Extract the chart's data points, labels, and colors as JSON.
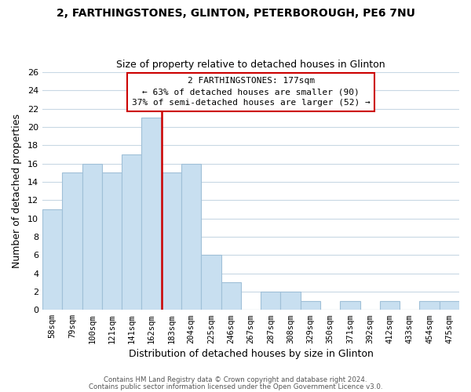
{
  "title_line1": "2, FARTHINGSTONES, GLINTON, PETERBOROUGH, PE6 7NU",
  "title_line2": "Size of property relative to detached houses in Glinton",
  "xlabel": "Distribution of detached houses by size in Glinton",
  "ylabel": "Number of detached properties",
  "bar_labels": [
    "58sqm",
    "79sqm",
    "100sqm",
    "121sqm",
    "141sqm",
    "162sqm",
    "183sqm",
    "204sqm",
    "225sqm",
    "246sqm",
    "267sqm",
    "287sqm",
    "308sqm",
    "329sqm",
    "350sqm",
    "371sqm",
    "392sqm",
    "412sqm",
    "433sqm",
    "454sqm",
    "475sqm"
  ],
  "bar_heights": [
    11,
    15,
    16,
    15,
    17,
    21,
    15,
    16,
    6,
    3,
    0,
    2,
    2,
    1,
    0,
    1,
    0,
    1,
    0,
    1,
    1
  ],
  "bar_color": "#c8dff0",
  "bar_edge_color": "#a0c0d8",
  "highlight_line_color": "#cc0000",
  "annotation_title": "2 FARTHINGSTONES: 177sqm",
  "annotation_line1": "← 63% of detached houses are smaller (90)",
  "annotation_line2": "37% of semi-detached houses are larger (52) →",
  "annotation_box_color": "#ffffff",
  "annotation_box_edge_color": "#cc0000",
  "ylim": [
    0,
    26
  ],
  "yticks": [
    0,
    2,
    4,
    6,
    8,
    10,
    12,
    14,
    16,
    18,
    20,
    22,
    24,
    26
  ],
  "footer_line1": "Contains HM Land Registry data © Crown copyright and database right 2024.",
  "footer_line2": "Contains public sector information licensed under the Open Government Licence v3.0.",
  "background_color": "#ffffff",
  "grid_color": "#c8d8e4"
}
